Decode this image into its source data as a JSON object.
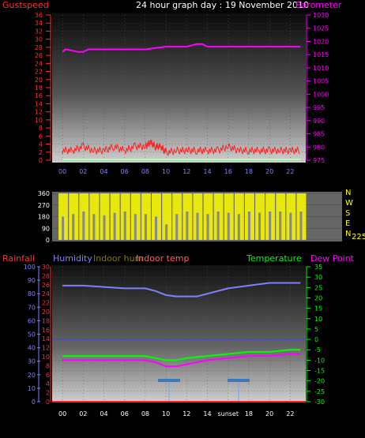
{
  "header": {
    "left_label": "Gustspeed",
    "title": "24 hour graph day : 19 November 2010",
    "right_label": "Barometer"
  },
  "wind_panel": {
    "direction_letters": [
      "N",
      "W",
      "S",
      "E",
      "N"
    ],
    "current_direction": "225"
  },
  "bottom_labels": {
    "rainfall": "Rainfall",
    "humidity": "Humidity",
    "indoor_hum": "Indoor hum",
    "indoor_temp": "Indoor temp",
    "temperature": "Temperature",
    "dew_point": "Dew Point"
  },
  "annotations": {
    "sunset": "sunset"
  },
  "colors": {
    "gust": "#ff2020",
    "baro": "#ff00ff",
    "wind_dir": "#ffff00",
    "humidity": "#8080ff",
    "temperature": "#00ff00",
    "dewpoint": "#ff00ff",
    "rain": "#ff4040",
    "grid": "#8080ff"
  },
  "chart_data": [
    {
      "type": "line",
      "x_ticks": [
        "00",
        "02",
        "04",
        "06",
        "08",
        "10",
        "12",
        "14",
        "16",
        "18",
        "20",
        "22"
      ],
      "y_left_ticks": [
        "0",
        "2",
        "4",
        "6",
        "8",
        "10",
        "12",
        "14",
        "16",
        "18",
        "20",
        "22",
        "24",
        "26",
        "28",
        "30",
        "32",
        "34",
        "36"
      ],
      "y_right_ticks": [
        "975",
        "980",
        "985",
        "990",
        "995",
        "1000",
        "1005",
        "1010",
        "1015",
        "1020",
        "1025",
        "1030"
      ],
      "ylim_left": [
        0,
        36
      ],
      "ylim_right": [
        975,
        1030
      ],
      "series": [
        {
          "name": "Gustspeed",
          "x": [
            0,
            1,
            2,
            3,
            4,
            5,
            6,
            7,
            8,
            8.5,
            9,
            9.5,
            10,
            11,
            12,
            13,
            14,
            15,
            16,
            17,
            18,
            19,
            20,
            21,
            22,
            23
          ],
          "values": [
            2,
            2,
            3,
            2,
            2,
            3,
            2,
            3,
            3,
            4,
            3,
            3,
            1.5,
            2,
            2,
            2,
            2,
            2,
            3,
            2,
            2,
            2,
            2,
            2,
            2,
            2
          ]
        },
        {
          "name": "Barometer",
          "x": [
            0,
            0.3,
            1,
            1.5,
            2,
            2.5,
            3,
            6,
            8,
            10,
            11,
            12,
            13,
            13.5,
            14,
            16,
            18,
            22,
            23
          ],
          "values": [
            1016,
            1017,
            1016.5,
            1016,
            1016,
            1017,
            1017,
            1017,
            1017,
            1018,
            1018,
            1018,
            1019,
            1019,
            1018,
            1018,
            1018,
            1018,
            1018
          ]
        }
      ]
    },
    {
      "type": "bar",
      "yticks": [
        "0",
        "45",
        "90",
        "135",
        "180",
        "225",
        "270",
        "315",
        "360"
      ],
      "ylim": [
        0,
        360
      ],
      "series": [
        {
          "name": "Wind direction",
          "x": [
            0,
            1,
            2,
            3,
            4,
            5,
            6,
            7,
            8,
            9,
            10,
            11,
            12,
            13,
            14,
            15,
            16,
            17,
            18,
            19,
            20,
            21,
            22,
            23
          ],
          "values": [
            180,
            200,
            220,
            200,
            190,
            210,
            220,
            200,
            200,
            180,
            120,
            200,
            220,
            210,
            200,
            220,
            210,
            200,
            220,
            210,
            220,
            220,
            210,
            220
          ]
        }
      ]
    },
    {
      "type": "line",
      "y_left_outer_ticks": [
        "0",
        "10",
        "20",
        "30",
        "40",
        "50",
        "60",
        "70",
        "80",
        "90",
        "100"
      ],
      "y_left_inner_ticks": [
        "0",
        "2",
        "4",
        "6",
        "8",
        "10",
        "12",
        "14",
        "16",
        "18",
        "20",
        "22",
        "24",
        "26",
        "28",
        "30"
      ],
      "y_right_ticks": [
        "35",
        "30",
        "25",
        "20",
        "15",
        "10",
        "5",
        "0",
        "-5",
        "-10",
        "-15",
        "-20",
        "-25",
        "-30"
      ],
      "series": [
        {
          "name": "Humidity",
          "x": [
            0,
            2,
            4,
            6,
            8,
            9,
            10,
            11,
            12,
            13,
            14,
            16,
            18,
            20,
            22,
            23
          ],
          "values": [
            86,
            86,
            85,
            84,
            84,
            82,
            79,
            78,
            78,
            78,
            80,
            84,
            86,
            88,
            88,
            88
          ]
        },
        {
          "name": "Temperature",
          "x": [
            0,
            2,
            4,
            6,
            8,
            9,
            10,
            11,
            12,
            14,
            16,
            18,
            20,
            22,
            23
          ],
          "values": [
            -8,
            -8,
            -8,
            -8,
            -8,
            -9,
            -10,
            -10,
            -9,
            -8,
            -7,
            -6,
            -6,
            -5,
            -5
          ]
        },
        {
          "name": "Dew Point",
          "x": [
            0,
            2,
            4,
            6,
            8,
            9,
            10,
            11,
            12,
            14,
            16,
            18,
            20,
            22,
            23
          ],
          "values": [
            -10,
            -10,
            -10,
            -10,
            -10,
            -11,
            -13,
            -13,
            -12,
            -10,
            -9,
            -8,
            -8,
            -7,
            -7
          ]
        }
      ]
    }
  ]
}
